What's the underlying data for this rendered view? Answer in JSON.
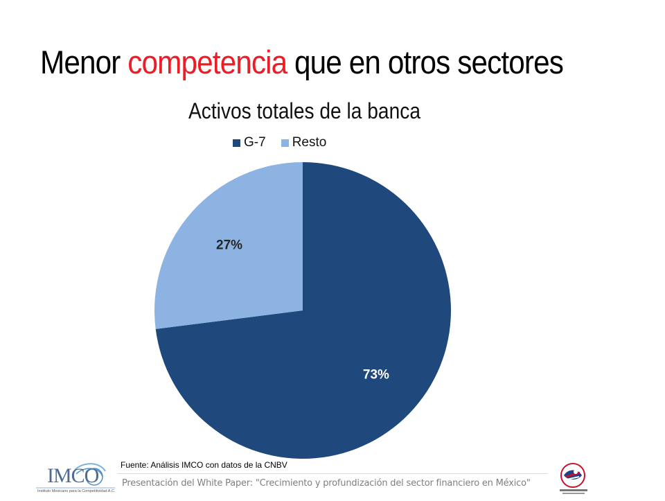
{
  "title": {
    "before": "Menor ",
    "highlight": "competencia",
    "after": " que en otros sectores",
    "highlight_color": "#ee1c25"
  },
  "chart_data": {
    "type": "pie",
    "title": "Activos totales de la banca",
    "legend_placement": "top",
    "slices": [
      {
        "name": "G-7",
        "value": 73,
        "label": "73%",
        "color": "#1f497d"
      },
      {
        "name": "Resto",
        "value": 27,
        "label": "27%",
        "color": "#8db3e2"
      }
    ]
  },
  "source": "Fuente: Análisis IMCO con datos de la CNBV",
  "footer": {
    "text": "Presentación del White Paper: \"Crecimiento y profundización del sector financiero en México\""
  },
  "logos": {
    "imco": {
      "name": "IMCO",
      "subtitle": "Instituto Mexicano para la Competitividad A.C."
    },
    "amcham": {
      "name": "American Chamber Mexico"
    }
  }
}
